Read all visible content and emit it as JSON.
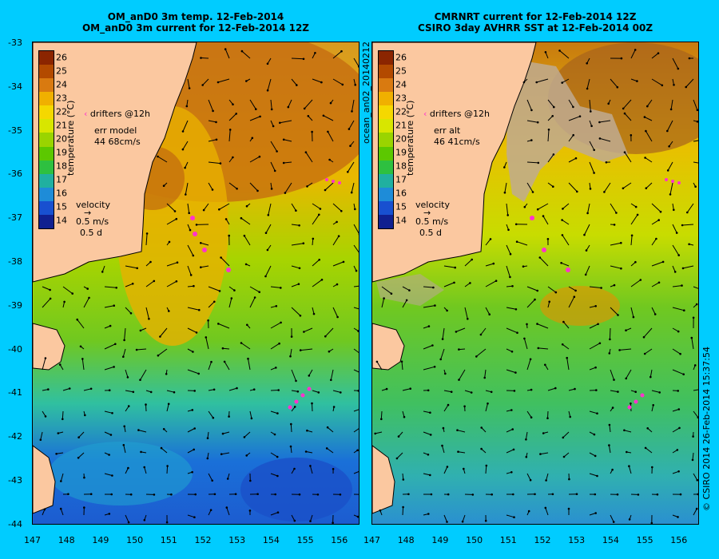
{
  "left": {
    "title_line1": "OM_anD0 3m temp. 12-Feb-2014",
    "title_line2": "OM_anD0 3m current for 12-Feb-2014 12Z",
    "drifters_label": "drifters @12h",
    "err_label": "err model",
    "err_value": "44 68cm/s",
    "velocity_label": "velocity",
    "velocity_scale": "0.5 m/s",
    "velocity_time": "0.5 d"
  },
  "right": {
    "title_line1": "CMRNRT current for 12-Feb-2014 12Z",
    "title_line2": "CSIRO 3day AVHRR SST at 12-Feb-2014 00Z",
    "drifters_label": "drifters @12h",
    "err_label": "err alt",
    "err_value": "46 41cm/s",
    "velocity_label": "velocity",
    "velocity_scale": "0.5 m/s",
    "velocity_time": "0.5 d"
  },
  "colorbar": {
    "label": "temperature (°C)",
    "ticks": [
      "26",
      "25",
      "24",
      "23",
      "22",
      "21",
      "20",
      "19",
      "18",
      "17",
      "16",
      "15",
      "14"
    ],
    "colors": [
      "#8b2500",
      "#b34a00",
      "#d97a10",
      "#f0b000",
      "#f5d800",
      "#d8e600",
      "#9ad400",
      "#5cc800",
      "#2ec040",
      "#20b0a0",
      "#1e8cd8",
      "#1850d0",
      "#102090"
    ]
  },
  "axes": {
    "lat_ticks": [
      "-33",
      "-34",
      "-35",
      "-36",
      "-37",
      "-38",
      "-39",
      "-40",
      "-41",
      "-42",
      "-43",
      "-44"
    ],
    "lon_ticks": [
      "147",
      "148",
      "149",
      "150",
      "151",
      "152",
      "153",
      "154",
      "155",
      "156"
    ]
  },
  "side_label": "ocean_an02_20140212",
  "copyright": "© CSIRO 2014   26-Feb-2014 15:37:54",
  "colors": {
    "background": "#00ccff",
    "land": "#fbc8a0",
    "drifter": "#ff33cc"
  }
}
